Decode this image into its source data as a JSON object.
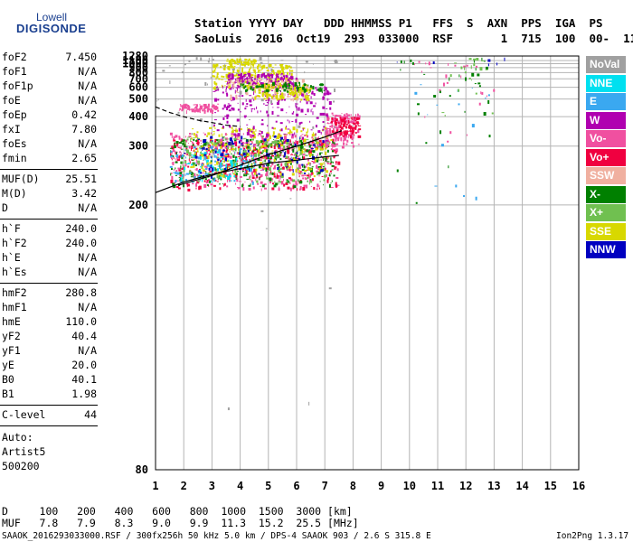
{
  "logo": {
    "line1": "Lowell",
    "line2": "DIGISONDE"
  },
  "header": {
    "line1": "Station YYYY DAY   DDD HHMMSS P1   FFS  S  AXN  PPS  IGA  PS",
    "line2": "SaoLuis  2016  Oct19  293  033000  RSF       1  715  100  00-  11"
  },
  "params1": [
    {
      "k": "foF2",
      "v": "7.450"
    },
    {
      "k": "foF1",
      "v": "N/A"
    },
    {
      "k": "foF1p",
      "v": "N/A"
    },
    {
      "k": "foE",
      "v": "N/A"
    },
    {
      "k": "foEp",
      "v": "0.42"
    },
    {
      "k": "fxI",
      "v": "7.80"
    },
    {
      "k": "foEs",
      "v": "N/A"
    },
    {
      "k": "fmin",
      "v": "2.65"
    }
  ],
  "params2": [
    {
      "k": "MUF(D)",
      "v": "25.51"
    },
    {
      "k": "M(D)",
      "v": "3.42"
    },
    {
      "k": "D",
      "v": "N/A"
    }
  ],
  "params3": [
    {
      "k": "h`F",
      "v": "240.0"
    },
    {
      "k": "h`F2",
      "v": "240.0"
    },
    {
      "k": "h`E",
      "v": "N/A"
    },
    {
      "k": "h`Es",
      "v": "N/A"
    }
  ],
  "params4": [
    {
      "k": "hmF2",
      "v": "280.8"
    },
    {
      "k": "hmF1",
      "v": "N/A"
    },
    {
      "k": "hmE",
      "v": "110.0"
    },
    {
      "k": "yF2",
      "v": "40.4"
    },
    {
      "k": "yF1",
      "v": "N/A"
    },
    {
      "k": "yE",
      "v": "20.0"
    },
    {
      "k": "B0",
      "v": "40.1"
    },
    {
      "k": "B1",
      "v": "1.98"
    }
  ],
  "params5": [
    {
      "k": "C-level",
      "v": "44"
    }
  ],
  "autoscale": [
    "Auto:",
    "Artist5",
    "500200"
  ],
  "legend": [
    {
      "label": "NoVal",
      "color": "#a0a0a0"
    },
    {
      "label": "NNE",
      "color": "#00e0f0"
    },
    {
      "label": "E",
      "color": "#3aa8f0"
    },
    {
      "label": "W",
      "color": "#b000b0"
    },
    {
      "label": "Vo-",
      "color": "#f050a0"
    },
    {
      "label": "Vo+",
      "color": "#f00040"
    },
    {
      "label": "SSW",
      "color": "#f0b0a0"
    },
    {
      "label": "X-",
      "color": "#008000"
    },
    {
      "label": "X+",
      "color": "#70c050"
    },
    {
      "label": "SSE",
      "color": "#d8d800"
    },
    {
      "label": "NNW",
      "color": "#0000c0"
    }
  ],
  "footer": {
    "d_row": "D     100   200   400   600   800  1000  1500  3000 [km]",
    "muf_row": "MUF   7.8   7.9   8.3   9.0   9.9  11.3  15.2  25.5 [MHz]",
    "source": "SAAOK_2016293033000.RSF / 300fx256h 50 kHz 5.0 km / DPS-4 SAAOK 903 / 2.6 S 315.8 E",
    "version": "Ion2Png 1.3.17"
  },
  "chart_data": {
    "type": "scatter",
    "title": "",
    "xlabel": "",
    "ylabel": "",
    "xlim": [
      1,
      16
    ],
    "ylim": [
      80,
      1280
    ],
    "y_scale": "reciprocal",
    "x_ticks": [
      "1",
      "2",
      "3",
      "4",
      "5",
      "6",
      "7",
      "8",
      "9",
      "10",
      "11",
      "12",
      "13",
      "14",
      "15",
      "16"
    ],
    "y_ticks": [
      "80",
      "200",
      "300",
      "400",
      "500",
      "600",
      "700",
      "800",
      "900",
      "1000",
      "1100",
      "1280"
    ],
    "grid": true,
    "scaled_traces": [
      {
        "name": "",
        "style": "solid",
        "x": [
          1.0,
          2.0,
          3.0,
          4.0,
          5.0,
          6.0,
          7.0,
          7.5
        ],
        "y": [
          215,
          230,
          242,
          252,
          262,
          268,
          275,
          278
        ]
      },
      {
        "name": "",
        "style": "solid",
        "x": [
          1.8,
          3.0,
          4.0,
          5.0,
          6.0,
          7.0,
          7.6
        ],
        "y": [
          225,
          240,
          258,
          280,
          300,
          325,
          345
        ]
      },
      {
        "name": "",
        "style": "dashed",
        "x": [
          1.0,
          1.5,
          2.0,
          2.5,
          3.0,
          3.5,
          4.0
        ],
        "y": [
          450,
          420,
          400,
          385,
          375,
          365,
          360
        ]
      }
    ],
    "echo_regions": [
      {
        "color": "#f050a0",
        "x": [
          1.5,
          7.5
        ],
        "y": [
          220,
          340
        ],
        "n": 420
      },
      {
        "color": "#f00040",
        "x": [
          1.5,
          7.5
        ],
        "y": [
          220,
          320
        ],
        "n": 320
      },
      {
        "color": "#008000",
        "x": [
          1.5,
          7.3
        ],
        "y": [
          225,
          320
        ],
        "n": 260
      },
      {
        "color": "#70c050",
        "x": [
          1.8,
          7.0
        ],
        "y": [
          230,
          330
        ],
        "n": 200
      },
      {
        "color": "#d8d800",
        "x": [
          2.2,
          7.2
        ],
        "y": [
          240,
          360
        ],
        "n": 220
      },
      {
        "color": "#3aa8f0",
        "x": [
          1.5,
          4.5
        ],
        "y": [
          230,
          300
        ],
        "n": 90
      },
      {
        "color": "#00e0f0",
        "x": [
          1.8,
          4.0
        ],
        "y": [
          230,
          290
        ],
        "n": 60
      },
      {
        "color": "#0000c0",
        "x": [
          2.0,
          7.0
        ],
        "y": [
          240,
          330
        ],
        "n": 90
      },
      {
        "color": "#b000b0",
        "x": [
          3.0,
          7.2
        ],
        "y": [
          300,
          620
        ],
        "n": 260
      },
      {
        "color": "#f050a0",
        "x": [
          1.8,
          3.2
        ],
        "y": [
          430,
          470
        ],
        "n": 90
      },
      {
        "color": "#f050a0",
        "x": [
          7.0,
          8.2
        ],
        "y": [
          300,
          420
        ],
        "n": 150
      },
      {
        "color": "#f00040",
        "x": [
          7.2,
          8.2
        ],
        "y": [
          330,
          400
        ],
        "n": 90
      },
      {
        "color": "#d8d800",
        "x": [
          3.0,
          5.8
        ],
        "y": [
          600,
          1000
        ],
        "n": 220
      },
      {
        "color": "#d8d800",
        "x": [
          3.5,
          4.5
        ],
        "y": [
          1000,
          1180
        ],
        "n": 50
      },
      {
        "color": "#b000b0",
        "x": [
          3.5,
          6.0
        ],
        "y": [
          620,
          800
        ],
        "n": 160
      },
      {
        "color": "#f0b0a0",
        "x": [
          3.5,
          6.5
        ],
        "y": [
          500,
          700
        ],
        "n": 120
      },
      {
        "color": "#d8d800",
        "x": [
          4.5,
          6.5
        ],
        "y": [
          500,
          640
        ],
        "n": 120
      },
      {
        "color": "#008000",
        "x": [
          4.0,
          7.0
        ],
        "y": [
          560,
          660
        ],
        "n": 80
      },
      {
        "color": "#a0a0a0",
        "x": [
          1.0,
          7.5
        ],
        "y": [
          80,
          1280
        ],
        "n": 60
      },
      {
        "color": "#008000",
        "x": [
          9.5,
          13.0
        ],
        "y": [
          200,
          1280
        ],
        "n": 35
      },
      {
        "color": "#f050a0",
        "x": [
          10.0,
          13.0
        ],
        "y": [
          300,
          1100
        ],
        "n": 25
      },
      {
        "color": "#3aa8f0",
        "x": [
          10.0,
          13.0
        ],
        "y": [
          200,
          700
        ],
        "n": 15
      },
      {
        "color": "#70c050",
        "x": [
          11.0,
          13.0
        ],
        "y": [
          400,
          1280
        ],
        "n": 20
      },
      {
        "color": "#0000c0",
        "x": [
          9.5,
          14.0
        ],
        "y": [
          1000,
          1280
        ],
        "n": 6
      }
    ]
  }
}
